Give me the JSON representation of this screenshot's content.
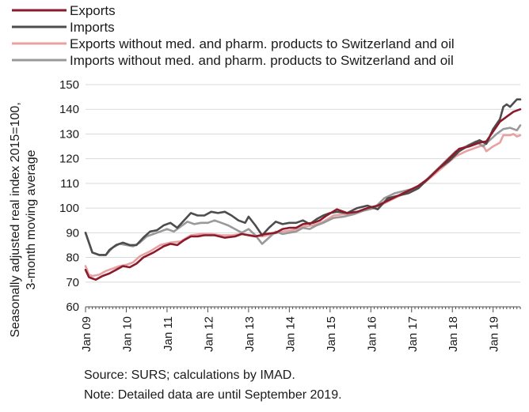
{
  "chart_data": {
    "type": "line",
    "ylabel_line1": "Seasonally adjusted real index 2015=100,",
    "ylabel_line2": "3-month moving average",
    "ylim": [
      60,
      150
    ],
    "yticks": [
      60,
      70,
      80,
      90,
      100,
      110,
      120,
      130,
      140,
      150
    ],
    "x_start": "2009-01",
    "x_end": "2019-09",
    "xtick_labels": [
      "Jan 09",
      "Jan 10",
      "Jan 11",
      "Jan 12",
      "Jan 13",
      "Jan 14",
      "Jan 15",
      "Jan 16",
      "Jan 17",
      "Jan 18",
      "Jan 19"
    ],
    "grid": "horizontal",
    "legend_position": "top-left",
    "series": [
      {
        "name": "Exports",
        "color": "#8b1a2b",
        "points": [
          [
            "2009-01",
            75
          ],
          [
            "2009-02",
            72
          ],
          [
            "2009-03",
            71.5
          ],
          [
            "2009-04",
            71
          ],
          [
            "2009-06",
            72.5
          ],
          [
            "2009-08",
            73.5
          ],
          [
            "2009-10",
            75
          ],
          [
            "2009-12",
            76.5
          ],
          [
            "2010-02",
            76
          ],
          [
            "2010-04",
            77.5
          ],
          [
            "2010-06",
            80
          ],
          [
            "2010-09",
            82
          ],
          [
            "2010-12",
            84.5
          ],
          [
            "2011-02",
            85.5
          ],
          [
            "2011-04",
            85
          ],
          [
            "2011-06",
            87
          ],
          [
            "2011-08",
            88.5
          ],
          [
            "2011-10",
            88.5
          ],
          [
            "2011-12",
            89
          ],
          [
            "2012-03",
            89
          ],
          [
            "2012-06",
            88
          ],
          [
            "2012-09",
            88.5
          ],
          [
            "2012-11",
            89.5
          ],
          [
            "2013-01",
            89
          ],
          [
            "2013-03",
            88.5
          ],
          [
            "2013-06",
            89.5
          ],
          [
            "2013-09",
            90
          ],
          [
            "2013-11",
            91.5
          ],
          [
            "2014-01",
            92
          ],
          [
            "2014-03",
            92
          ],
          [
            "2014-05",
            93.5
          ],
          [
            "2014-08",
            94
          ],
          [
            "2014-10",
            95
          ],
          [
            "2014-12",
            97
          ],
          [
            "2015-03",
            99.5
          ],
          [
            "2015-06",
            98
          ],
          [
            "2015-09",
            98.5
          ],
          [
            "2015-12",
            100
          ],
          [
            "2016-03",
            101
          ],
          [
            "2016-06",
            103
          ],
          [
            "2016-09",
            105
          ],
          [
            "2016-12",
            107
          ],
          [
            "2017-03",
            109
          ],
          [
            "2017-06",
            112
          ],
          [
            "2017-09",
            116
          ],
          [
            "2017-12",
            120
          ],
          [
            "2018-03",
            124
          ],
          [
            "2018-06",
            125
          ],
          [
            "2018-09",
            126.5
          ],
          [
            "2018-11",
            127
          ],
          [
            "2019-01",
            131
          ],
          [
            "2019-03",
            135
          ],
          [
            "2019-05",
            137
          ],
          [
            "2019-07",
            139
          ],
          [
            "2019-09",
            140
          ]
        ]
      },
      {
        "name": "Imports",
        "color": "#4d4d4d",
        "points": [
          [
            "2009-01",
            90
          ],
          [
            "2009-02",
            86
          ],
          [
            "2009-03",
            82
          ],
          [
            "2009-05",
            81
          ],
          [
            "2009-07",
            81
          ],
          [
            "2009-08",
            83
          ],
          [
            "2009-10",
            85
          ],
          [
            "2009-12",
            86
          ],
          [
            "2010-02",
            85
          ],
          [
            "2010-04",
            85
          ],
          [
            "2010-06",
            88
          ],
          [
            "2010-08",
            90.5
          ],
          [
            "2010-10",
            91
          ],
          [
            "2010-12",
            93
          ],
          [
            "2011-02",
            94
          ],
          [
            "2011-04",
            92
          ],
          [
            "2011-06",
            95
          ],
          [
            "2011-08",
            98
          ],
          [
            "2011-10",
            97
          ],
          [
            "2011-12",
            97
          ],
          [
            "2012-02",
            98.5
          ],
          [
            "2012-04",
            98
          ],
          [
            "2012-06",
            98.5
          ],
          [
            "2012-08",
            97
          ],
          [
            "2012-10",
            95
          ],
          [
            "2012-12",
            94
          ],
          [
            "2013-01",
            96.5
          ],
          [
            "2013-03",
            93
          ],
          [
            "2013-05",
            89
          ],
          [
            "2013-07",
            92
          ],
          [
            "2013-09",
            94.5
          ],
          [
            "2013-11",
            93.5
          ],
          [
            "2014-01",
            94
          ],
          [
            "2014-03",
            94
          ],
          [
            "2014-05",
            95
          ],
          [
            "2014-07",
            93.5
          ],
          [
            "2014-09",
            95.5
          ],
          [
            "2014-11",
            97
          ],
          [
            "2015-01",
            98
          ],
          [
            "2015-03",
            98.5
          ],
          [
            "2015-06",
            98
          ],
          [
            "2015-09",
            100
          ],
          [
            "2015-12",
            101
          ],
          [
            "2016-03",
            99.5
          ],
          [
            "2016-06",
            104
          ],
          [
            "2016-09",
            105
          ],
          [
            "2016-12",
            106
          ],
          [
            "2017-03",
            108
          ],
          [
            "2017-06",
            112
          ],
          [
            "2017-09",
            116
          ],
          [
            "2017-12",
            119
          ],
          [
            "2018-03",
            123
          ],
          [
            "2018-06",
            125.5
          ],
          [
            "2018-09",
            127.5
          ],
          [
            "2018-11",
            126
          ],
          [
            "2019-01",
            132
          ],
          [
            "2019-03",
            136
          ],
          [
            "2019-04",
            141
          ],
          [
            "2019-05",
            142
          ],
          [
            "2019-06",
            141
          ],
          [
            "2019-07",
            142.5
          ],
          [
            "2019-08",
            144
          ],
          [
            "2019-09",
            144
          ]
        ]
      },
      {
        "name": "Exports without med. and pharm. products to Switzerland and oil",
        "color": "#e8a0a0",
        "points": [
          [
            "2009-01",
            76.5
          ],
          [
            "2009-02",
            73
          ],
          [
            "2009-03",
            72.5
          ],
          [
            "2009-05",
            73
          ],
          [
            "2009-07",
            74.5
          ],
          [
            "2009-09",
            75.5
          ],
          [
            "2009-11",
            76.5
          ],
          [
            "2010-01",
            77
          ],
          [
            "2010-03",
            78
          ],
          [
            "2010-05",
            80.5
          ],
          [
            "2010-08",
            82.5
          ],
          [
            "2010-11",
            85
          ],
          [
            "2011-02",
            86
          ],
          [
            "2011-05",
            86.5
          ],
          [
            "2011-08",
            89
          ],
          [
            "2011-11",
            89.5
          ],
          [
            "2012-02",
            89.5
          ],
          [
            "2012-05",
            89
          ],
          [
            "2012-08",
            89
          ],
          [
            "2012-11",
            89.5
          ],
          [
            "2013-02",
            89
          ],
          [
            "2013-05",
            88.5
          ],
          [
            "2013-08",
            89.5
          ],
          [
            "2013-11",
            90.5
          ],
          [
            "2014-02",
            91
          ],
          [
            "2014-05",
            92.5
          ],
          [
            "2014-08",
            93
          ],
          [
            "2014-11",
            94.5
          ],
          [
            "2015-02",
            97
          ],
          [
            "2015-05",
            97.5
          ],
          [
            "2015-08",
            98
          ],
          [
            "2015-11",
            99
          ],
          [
            "2016-02",
            100
          ],
          [
            "2016-05",
            102
          ],
          [
            "2016-08",
            104
          ],
          [
            "2016-11",
            106
          ],
          [
            "2017-02",
            108
          ],
          [
            "2017-05",
            110.5
          ],
          [
            "2017-08",
            114
          ],
          [
            "2017-11",
            117.5
          ],
          [
            "2018-02",
            121
          ],
          [
            "2018-05",
            123
          ],
          [
            "2018-08",
            124.5
          ],
          [
            "2018-10",
            125.5
          ],
          [
            "2018-11",
            123
          ],
          [
            "2019-01",
            125
          ],
          [
            "2019-03",
            126.5
          ],
          [
            "2019-04",
            129.5
          ],
          [
            "2019-06",
            129.5
          ],
          [
            "2019-07",
            130
          ],
          [
            "2019-08",
            129
          ],
          [
            "2019-09",
            129.5
          ]
        ]
      },
      {
        "name": "Imports without med. and pharm. products to Switzerland and oil",
        "color": "#999999",
        "points": [
          [
            "2009-01",
            90
          ],
          [
            "2009-02",
            86
          ],
          [
            "2009-03",
            82
          ],
          [
            "2009-05",
            81
          ],
          [
            "2009-07",
            81
          ],
          [
            "2009-09",
            84
          ],
          [
            "2009-11",
            85.5
          ],
          [
            "2010-01",
            85
          ],
          [
            "2010-03",
            84.5
          ],
          [
            "2010-05",
            86
          ],
          [
            "2010-07",
            88.5
          ],
          [
            "2010-09",
            89.5
          ],
          [
            "2010-11",
            90.5
          ],
          [
            "2011-01",
            91.5
          ],
          [
            "2011-03",
            90.5
          ],
          [
            "2011-05",
            92.5
          ],
          [
            "2011-07",
            94.5
          ],
          [
            "2011-09",
            93.5
          ],
          [
            "2011-11",
            94
          ],
          [
            "2012-01",
            94
          ],
          [
            "2012-03",
            95
          ],
          [
            "2012-05",
            94
          ],
          [
            "2012-07",
            93
          ],
          [
            "2012-09",
            91.5
          ],
          [
            "2012-11",
            90
          ],
          [
            "2013-01",
            91.5
          ],
          [
            "2013-03",
            89
          ],
          [
            "2013-05",
            85.5
          ],
          [
            "2013-07",
            88
          ],
          [
            "2013-09",
            90.5
          ],
          [
            "2013-11",
            89.5
          ],
          [
            "2014-01",
            90
          ],
          [
            "2014-03",
            90.5
          ],
          [
            "2014-05",
            92
          ],
          [
            "2014-07",
            91.5
          ],
          [
            "2014-09",
            93
          ],
          [
            "2014-11",
            94
          ],
          [
            "2015-02",
            96
          ],
          [
            "2015-05",
            96.5
          ],
          [
            "2015-08",
            97.5
          ],
          [
            "2015-11",
            99
          ],
          [
            "2016-02",
            100
          ],
          [
            "2016-05",
            104
          ],
          [
            "2016-08",
            106
          ],
          [
            "2016-11",
            107
          ],
          [
            "2017-02",
            108
          ],
          [
            "2017-05",
            111
          ],
          [
            "2017-08",
            115
          ],
          [
            "2017-11",
            119
          ],
          [
            "2018-02",
            123
          ],
          [
            "2018-05",
            125
          ],
          [
            "2018-08",
            127
          ],
          [
            "2018-10",
            125
          ],
          [
            "2018-12",
            127.5
          ],
          [
            "2019-02",
            130
          ],
          [
            "2019-04",
            132
          ],
          [
            "2019-06",
            132.5
          ],
          [
            "2019-07",
            132
          ],
          [
            "2019-08",
            131.5
          ],
          [
            "2019-09",
            133.5
          ]
        ]
      }
    ]
  },
  "footnotes": {
    "source": "Source: SURS; calculations by IMAD.",
    "note": "Note: Detailed data are until September 2019."
  }
}
